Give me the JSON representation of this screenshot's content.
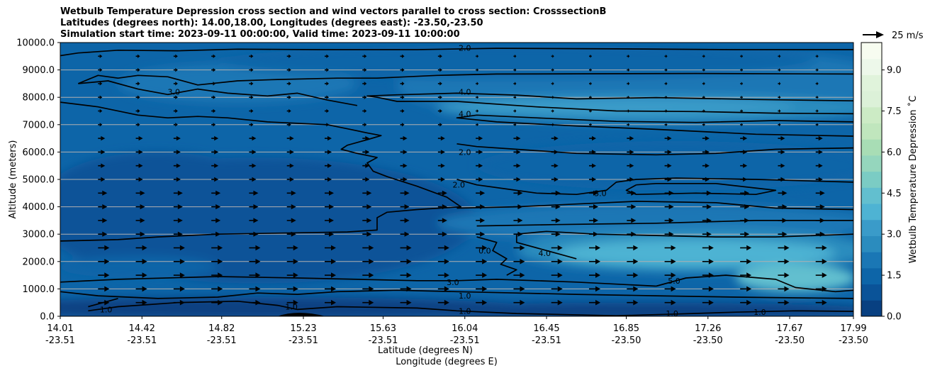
{
  "chart_data": {
    "type": "heatmap",
    "title_lines": [
      "Wetbulb Temperature Depression cross section and wind vectors parallel to cross section: CrosssectionB",
      "Latitudes (degrees north): 14.00,18.00, Longitudes (degrees east): -23.50,-23.50",
      "Simulation start time: 2023-09-11 00:00:00, Valid time: 2023-09-11 10:00:00"
    ],
    "ylabel": "Altitude (meters)",
    "xlabel_lines": [
      "Latitude (degrees N)",
      "Longitude (degrees E)"
    ],
    "ylim": [
      0,
      10000
    ],
    "yticks": [
      "0.0",
      "1000.0",
      "2000.0",
      "3000.0",
      "4000.0",
      "5000.0",
      "6000.0",
      "7000.0",
      "8000.0",
      "9000.0",
      "10000.0"
    ],
    "xticks": [
      {
        "lat": "14.01",
        "lon": "-23.51"
      },
      {
        "lat": "14.42",
        "lon": "-23.51"
      },
      {
        "lat": "14.82",
        "lon": "-23.51"
      },
      {
        "lat": "15.23",
        "lon": "-23.51"
      },
      {
        "lat": "15.63",
        "lon": "-23.51"
      },
      {
        "lat": "16.04",
        "lon": "-23.51"
      },
      {
        "lat": "16.45",
        "lon": "-23.51"
      },
      {
        "lat": "16.85",
        "lon": "-23.50"
      },
      {
        "lat": "17.26",
        "lon": "-23.50"
      },
      {
        "lat": "17.67",
        "lon": "-23.50"
      },
      {
        "lat": "17.99",
        "lon": "-23.50"
      }
    ],
    "x_range": [
      14.01,
      17.99
    ],
    "colorbar": {
      "label": "Wetbulb Temperature Depression ˚C",
      "range": [
        0,
        10
      ],
      "ticks": [
        "0.0",
        "1.5",
        "3.0",
        "4.5",
        "6.0",
        "7.5",
        "9.0"
      ],
      "colors": [
        "#084081",
        "#0a5398",
        "#0d65a8",
        "#1a77b5",
        "#2b8cbe",
        "#3a9bc9",
        "#4eb3d3",
        "#62bfcf",
        "#7bccc4",
        "#95d6bd",
        "#a8ddb5",
        "#c0e6bd",
        "#ccebc5",
        "#dcf1d8",
        "#e0f3db",
        "#edf8ea",
        "#f7fcf0"
      ]
    },
    "wind_key": {
      "label": "25 m/s",
      "speed": 25
    },
    "contour_labels": [
      {
        "text": "2.0",
        "lat": 16.04,
        "alt": 9800
      },
      {
        "text": "4.0",
        "lat": 16.04,
        "alt": 8200
      },
      {
        "text": "4.0",
        "lat": 16.04,
        "alt": 7400
      },
      {
        "text": "2.0",
        "lat": 16.04,
        "alt": 6000
      },
      {
        "text": "2.0",
        "lat": 16.01,
        "alt": 4800
      },
      {
        "text": "3.0",
        "lat": 16.72,
        "alt": 4500
      },
      {
        "text": "3.0",
        "lat": 14.58,
        "alt": 8200
      },
      {
        "text": "0.0",
        "lat": 16.14,
        "alt": 2400
      },
      {
        "text": "4.0",
        "lat": 16.44,
        "alt": 2300
      },
      {
        "text": "5.0",
        "lat": 17.09,
        "alt": 1300
      },
      {
        "text": "3.0",
        "lat": 15.98,
        "alt": 1250
      },
      {
        "text": "1.0",
        "lat": 16.04,
        "alt": 750
      },
      {
        "text": "1.0",
        "lat": 16.04,
        "alt": 200
      },
      {
        "text": "1.0",
        "lat": 17.08,
        "alt": 100
      },
      {
        "text": "1.0",
        "lat": 17.52,
        "alt": 150
      },
      {
        "text": "1.0",
        "lat": 14.24,
        "alt": 250
      },
      {
        "text": "1.0",
        "lat": 15.17,
        "alt": 350
      }
    ],
    "contours": [
      {
        "level": 2.0,
        "points": [
          [
            14.01,
            9520
          ],
          [
            14.1,
            9620
          ],
          [
            14.3,
            9720
          ],
          [
            14.6,
            9700
          ],
          [
            14.9,
            9760
          ],
          [
            15.3,
            9740
          ],
          [
            15.8,
            9740
          ],
          [
            16.2,
            9790
          ],
          [
            16.8,
            9770
          ],
          [
            17.4,
            9740
          ],
          [
            17.99,
            9740
          ]
        ]
      },
      {
        "level": 3.0,
        "points": [
          [
            14.01,
            7820
          ],
          [
            14.2,
            7650
          ],
          [
            14.4,
            7350
          ],
          [
            14.55,
            7250
          ],
          [
            14.7,
            7300
          ],
          [
            14.85,
            7250
          ],
          [
            15.05,
            7100
          ],
          [
            15.2,
            7050
          ],
          [
            15.35,
            7000
          ],
          [
            15.45,
            6850
          ],
          [
            15.55,
            6700
          ],
          [
            15.62,
            6600
          ],
          [
            15.55,
            6450
          ],
          [
            15.45,
            6250
          ],
          [
            15.42,
            6100
          ],
          [
            15.5,
            5950
          ],
          [
            15.6,
            5800
          ],
          [
            15.55,
            5600
          ],
          [
            15.58,
            5300
          ],
          [
            15.65,
            5100
          ],
          [
            15.8,
            4750
          ],
          [
            15.95,
            4350
          ],
          [
            16.02,
            4000
          ],
          [
            15.8,
            3900
          ],
          [
            15.65,
            3800
          ],
          [
            15.6,
            3600
          ],
          [
            15.6,
            3150
          ],
          [
            15.45,
            3080
          ],
          [
            15.2,
            3050
          ],
          [
            14.8,
            3000
          ],
          [
            14.5,
            2900
          ],
          [
            14.3,
            2800
          ],
          [
            14.01,
            2750
          ]
        ]
      },
      {
        "level": 3.0,
        "points": [
          [
            14.1,
            8500
          ],
          [
            14.2,
            8800
          ],
          [
            14.3,
            8700
          ],
          [
            14.4,
            8800
          ],
          [
            14.55,
            8750
          ],
          [
            14.7,
            8450
          ],
          [
            14.9,
            8600
          ],
          [
            15.1,
            8650
          ],
          [
            15.4,
            8700
          ],
          [
            15.6,
            8700
          ],
          [
            15.9,
            8800
          ],
          [
            16.2,
            8850
          ],
          [
            16.7,
            8860
          ],
          [
            17.2,
            8870
          ],
          [
            17.99,
            8850
          ]
        ]
      },
      {
        "level": 4.0,
        "points": [
          [
            17.99,
            7870
          ],
          [
            17.5,
            7920
          ],
          [
            17.0,
            7990
          ],
          [
            16.6,
            7940
          ],
          [
            16.3,
            8080
          ],
          [
            16.0,
            8150
          ],
          [
            15.7,
            8090
          ],
          [
            15.55,
            8050
          ],
          [
            15.6,
            8000
          ],
          [
            15.7,
            7850
          ],
          [
            16.0,
            7850
          ],
          [
            16.4,
            7650
          ],
          [
            16.8,
            7500
          ],
          [
            17.2,
            7480
          ],
          [
            17.6,
            7420
          ],
          [
            17.99,
            7400
          ]
        ]
      },
      {
        "level": 4.0,
        "points": [
          [
            14.1,
            8500
          ],
          [
            14.25,
            8600
          ],
          [
            14.4,
            8300
          ],
          [
            14.55,
            8100
          ],
          [
            14.7,
            8300
          ],
          [
            14.85,
            8150
          ],
          [
            15.05,
            8050
          ],
          [
            15.2,
            8150
          ],
          [
            15.35,
            7900
          ],
          [
            15.5,
            7700
          ]
        ]
      },
      {
        "level": 3.0,
        "points": [
          [
            17.99,
            7100
          ],
          [
            17.6,
            7150
          ],
          [
            17.2,
            7080
          ],
          [
            16.8,
            7120
          ],
          [
            16.4,
            7250
          ],
          [
            16.1,
            7350
          ],
          [
            16.0,
            7250
          ],
          [
            16.2,
            7100
          ],
          [
            16.6,
            6950
          ],
          [
            17.0,
            6830
          ],
          [
            17.5,
            6650
          ],
          [
            17.99,
            6580
          ]
        ]
      },
      {
        "level": 2.0,
        "points": [
          [
            16.0,
            6300
          ],
          [
            16.1,
            6200
          ],
          [
            16.3,
            6100
          ],
          [
            16.6,
            5950
          ],
          [
            17.0,
            5900
          ],
          [
            17.3,
            5950
          ],
          [
            17.6,
            6100
          ],
          [
            17.99,
            6150
          ]
        ]
      },
      {
        "level": 2.0,
        "points": [
          [
            16.0,
            5000
          ],
          [
            16.1,
            4800
          ],
          [
            16.25,
            4650
          ],
          [
            16.4,
            4500
          ],
          [
            16.6,
            4450
          ],
          [
            16.75,
            4600
          ],
          [
            16.8,
            4900
          ],
          [
            16.9,
            5000
          ],
          [
            17.1,
            5050
          ],
          [
            17.5,
            5000
          ],
          [
            17.99,
            4900
          ]
        ]
      },
      {
        "level": 3.0,
        "points": [
          [
            16.9,
            4800
          ],
          [
            17.0,
            4850
          ],
          [
            17.3,
            4850
          ],
          [
            17.6,
            4600
          ],
          [
            17.5,
            4450
          ],
          [
            17.2,
            4500
          ],
          [
            16.9,
            4450
          ],
          [
            16.85,
            4600
          ],
          [
            16.9,
            4800
          ]
        ]
      },
      {
        "level": 3.0,
        "points": [
          [
            16.0,
            3950
          ],
          [
            16.3,
            4000
          ],
          [
            16.6,
            4100
          ],
          [
            16.9,
            4200
          ],
          [
            17.3,
            4150
          ],
          [
            17.6,
            3950
          ],
          [
            17.99,
            3900
          ]
        ]
      },
      {
        "level": 3.0,
        "points": [
          [
            16.1,
            3300
          ],
          [
            16.5,
            3350
          ],
          [
            17.0,
            3400
          ],
          [
            17.5,
            3500
          ],
          [
            17.99,
            3500
          ]
        ]
      },
      {
        "level": 4.0,
        "points": [
          [
            17.99,
            3000
          ],
          [
            17.6,
            2900
          ],
          [
            17.3,
            2900
          ],
          [
            17.0,
            2950
          ],
          [
            16.7,
            3000
          ],
          [
            16.45,
            3100
          ],
          [
            16.3,
            3000
          ],
          [
            16.3,
            2700
          ],
          [
            16.4,
            2500
          ],
          [
            16.5,
            2300
          ],
          [
            16.6,
            2100
          ]
        ]
      },
      {
        "level": 0.0,
        "points": [
          [
            16.1,
            2900
          ],
          [
            16.2,
            2700
          ],
          [
            16.18,
            2400
          ],
          [
            16.25,
            2100
          ],
          [
            16.22,
            1900
          ],
          [
            16.3,
            1700
          ],
          [
            16.25,
            1500
          ]
        ]
      },
      {
        "level": 5.0,
        "points": [
          [
            17.0,
            1100
          ],
          [
            17.15,
            1400
          ],
          [
            17.35,
            1500
          ],
          [
            17.6,
            1350
          ],
          [
            17.7,
            1050
          ],
          [
            17.9,
            900
          ],
          [
            17.99,
            950
          ]
        ]
      },
      {
        "level": 3.0,
        "points": [
          [
            14.01,
            1250
          ],
          [
            14.3,
            1350
          ],
          [
            14.8,
            1450
          ],
          [
            15.2,
            1400
          ],
          [
            15.5,
            1350
          ],
          [
            15.8,
            1300
          ],
          [
            16.0,
            1300
          ],
          [
            16.2,
            1350
          ],
          [
            16.6,
            1250
          ],
          [
            17.0,
            1100
          ]
        ]
      },
      {
        "level": 1.0,
        "points": [
          [
            14.01,
            900
          ],
          [
            14.2,
            750
          ],
          [
            14.5,
            650
          ],
          [
            14.8,
            700
          ],
          [
            15.0,
            850
          ],
          [
            15.2,
            800
          ],
          [
            15.4,
            900
          ],
          [
            15.7,
            950
          ],
          [
            16.0,
            900
          ],
          [
            16.3,
            850
          ],
          [
            16.6,
            800
          ],
          [
            17.0,
            750
          ],
          [
            17.4,
            700
          ],
          [
            17.99,
            650
          ]
        ]
      },
      {
        "level": 1.0,
        "points": [
          [
            14.15,
            200
          ],
          [
            14.3,
            350
          ],
          [
            14.6,
            500
          ],
          [
            14.9,
            550
          ],
          [
            15.1,
            400
          ],
          [
            15.2,
            250
          ],
          [
            15.4,
            350
          ],
          [
            15.8,
            300
          ],
          [
            16.0,
            200
          ],
          [
            16.3,
            100
          ],
          [
            16.8,
            20
          ],
          [
            17.1,
            80
          ],
          [
            17.4,
            150
          ],
          [
            17.7,
            200
          ],
          [
            17.99,
            180
          ]
        ]
      },
      {
        "level": 1.0,
        "points": [
          [
            14.15,
            350
          ],
          [
            14.25,
            550
          ],
          [
            14.3,
            650
          ]
        ]
      }
    ]
  }
}
